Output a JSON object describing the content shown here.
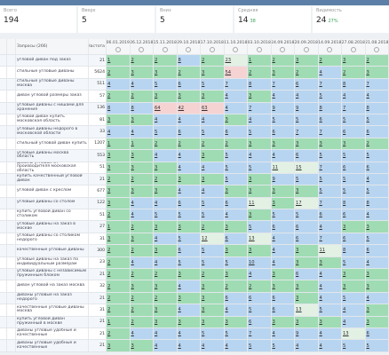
{
  "stats": [
    {
      "label": "Всего",
      "value": "194"
    },
    {
      "label": "Вверх",
      "value": "5"
    },
    {
      "label": "Вниз",
      "value": "5"
    },
    {
      "label": "Средняя",
      "value": "14",
      "sub": "38"
    },
    {
      "label": "Видимость",
      "value": "24",
      "sub": "27%"
    }
  ],
  "table": {
    "query_header": "Запросы (266)",
    "freq_header": "Частота",
    "dates": [
      "06.01.2019",
      "26.12.2018",
      "15.11.2018",
      "29.10.2018",
      "17.10.2018",
      "11.10.2018",
      "03.10.2018",
      "24.09.2018",
      "20.09.2018",
      "14.09.2018",
      "27.08.2018",
      "21.08.2018"
    ],
    "rows": [
      {
        "query": "угловой диван под заказ",
        "freq": "21",
        "positions": [
          1,
          2,
          2,
          8,
          2,
          23,
          1,
          2,
          3,
          2,
          3,
          2
        ]
      },
      {
        "query": "стильные угловые диваны",
        "freq": "5624",
        "positions": [
          2,
          3,
          3,
          2,
          3,
          54,
          2,
          3,
          2,
          4,
          2,
          3
        ]
      },
      {
        "query": "стильные угловые диваны москва",
        "freq": "511",
        "positions": [
          4,
          4,
          5,
          6,
          5,
          7,
          8,
          7,
          6,
          7,
          8,
          7
        ]
      },
      {
        "query": "диван угловой размеры заказ",
        "freq": "57",
        "positions": [
          2,
          2,
          3,
          3,
          3,
          4,
          3,
          4,
          4,
          5,
          4,
          4
        ]
      },
      {
        "query": "угловые диваны с нишами для хранения",
        "freq": "136",
        "positions": [
          8,
          8,
          64,
          42,
          63,
          4,
          7,
          9,
          9,
          8,
          7,
          8
        ]
      },
      {
        "query": "угловой диван купить московская область",
        "freq": "81",
        "positions": [
          3,
          3,
          4,
          4,
          4,
          3,
          4,
          5,
          5,
          6,
          5,
          5
        ]
      },
      {
        "query": "угловые диваны недорого в московской области",
        "freq": "33",
        "positions": [
          4,
          4,
          5,
          6,
          5,
          6,
          5,
          6,
          7,
          7,
          6,
          6
        ]
      },
      {
        "query": "стильный угловой диван купить",
        "freq": "1207",
        "positions": [
          1,
          1,
          2,
          2,
          2,
          2,
          3,
          3,
          3,
          3,
          3,
          2
        ]
      },
      {
        "query": "угловые диваны москва область",
        "freq": "553",
        "positions": [
          3,
          3,
          4,
          4,
          3,
          5,
          4,
          4,
          6,
          5,
          5,
          5
        ]
      },
      {
        "query": "диваны угловые от производителя московская область",
        "freq": "51",
        "positions": [
          3,
          3,
          3,
          4,
          4,
          5,
          5,
          11,
          15,
          7,
          6,
          6
        ]
      },
      {
        "query": "купить качественный угловой диван",
        "freq": "21",
        "positions": [
          2,
          2,
          2,
          3,
          3,
          5,
          3,
          9,
          5,
          5,
          5,
          4
        ]
      },
      {
        "query": "угловой диван с креслом",
        "freq": "677",
        "positions": [
          3,
          3,
          3,
          4,
          4,
          3,
          3,
          3,
          3,
          5,
          5,
          5
        ]
      },
      {
        "query": "угловые диваны со столом",
        "freq": "122",
        "positions": [
          3,
          4,
          4,
          6,
          5,
          6,
          11,
          3,
          17,
          7,
          8,
          8
        ]
      },
      {
        "query": "купить угловой диван со столиком",
        "freq": "51",
        "positions": [
          2,
          4,
          5,
          5,
          5,
          4,
          3,
          5,
          5,
          6,
          6,
          4
        ]
      },
      {
        "query": "угловые диваны на заказ в москве",
        "freq": "27",
        "positions": [
          1,
          2,
          3,
          3,
          2,
          3,
          5,
          6,
          6,
          4,
          3,
          3
        ]
      },
      {
        "query": "угловые диваны со столиком недорого",
        "freq": "31",
        "positions": [
          3,
          3,
          4,
          5,
          12,
          6,
          13,
          4,
          6,
          7,
          6,
          5
        ]
      },
      {
        "query": "качественные угловые диваны",
        "freq": "300",
        "positions": [
          2,
          2,
          3,
          6,
          5,
          3,
          3,
          4,
          3,
          11,
          8,
          6
        ]
      },
      {
        "query": "угловые диваны на заказ по индивидуальным размерам",
        "freq": "23",
        "positions": [
          2,
          4,
          4,
          5,
          5,
          5,
          10,
          4,
          3,
          3,
          5,
          4
        ]
      },
      {
        "query": "угловые диваны с независимым пружинным блоком",
        "freq": "21",
        "positions": [
          2,
          2,
          2,
          3,
          2,
          3,
          4,
          3,
          6,
          4,
          3,
          3
        ]
      },
      {
        "query": "диван угловой на заказ москва",
        "freq": "32",
        "positions": [
          2,
          3,
          3,
          4,
          3,
          2,
          2,
          3,
          3,
          4,
          3,
          3
        ]
      },
      {
        "query": "диваны угловые на заказ недорого",
        "freq": "21",
        "positions": [
          2,
          2,
          2,
          3,
          3,
          6,
          6,
          6,
          3,
          4,
          5,
          4
        ]
      },
      {
        "query": "качественные угловые диваны москва",
        "freq": "31",
        "positions": [
          2,
          2,
          3,
          4,
          3,
          4,
          5,
          6,
          13,
          5,
          4,
          3
        ]
      },
      {
        "query": "купить угловой диван пружинный в москве",
        "freq": "21",
        "positions": [
          1,
          2,
          3,
          3,
          3,
          3,
          6,
          3,
          3,
          3,
          4,
          3
        ]
      },
      {
        "query": "диваны угловые удобные и качественные",
        "freq": "21",
        "positions": [
          2,
          4,
          4,
          4,
          5,
          5,
          7,
          4,
          9,
          4,
          13,
          6
        ]
      },
      {
        "query": "диваны угловые удобные и качественные",
        "freq": "21",
        "positions": [
          3,
          3,
          4,
          4,
          4,
          4,
          5,
          5,
          4,
          4,
          5,
          5
        ]
      }
    ]
  }
}
